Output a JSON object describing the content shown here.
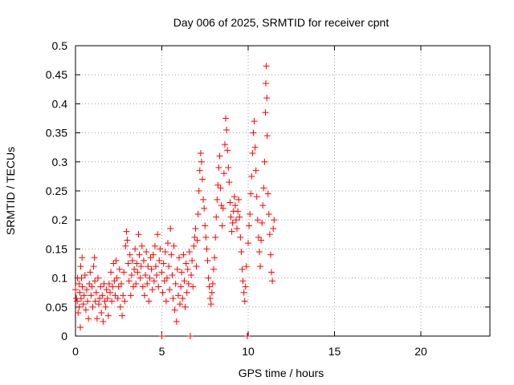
{
  "chart_data": {
    "type": "scatter",
    "title": "Day 006 of 2025, SRMTID for receiver cpnt",
    "xlabel": "GPS time / hours",
    "ylabel": "SRMTID / TECUs",
    "xlim": [
      0,
      24
    ],
    "ylim": [
      0,
      0.5
    ],
    "x_ticks": [
      0,
      5,
      10,
      15,
      20
    ],
    "x_tick_labels": [
      "0",
      "5",
      "10",
      "15",
      "20"
    ],
    "y_ticks": [
      0,
      0.05,
      0.1,
      0.15,
      0.2,
      0.25,
      0.3,
      0.35,
      0.4,
      0.45,
      0.5
    ],
    "y_tick_labels": [
      "0",
      "0.05",
      "0.1",
      "0.15",
      "0.2",
      "0.25",
      "0.3",
      "0.35",
      "0.4",
      "0.45",
      "0.5"
    ],
    "grid": true,
    "marker": "+",
    "color": "#ff0000",
    "series": [
      {
        "name": "SRMTID",
        "points": [
          [
            0.0,
            0.08
          ],
          [
            0.05,
            0.065
          ],
          [
            0.1,
            0.06
          ],
          [
            0.12,
            0.1
          ],
          [
            0.15,
            0.04
          ],
          [
            0.2,
            0.09
          ],
          [
            0.22,
            0.05
          ],
          [
            0.25,
            0.075
          ],
          [
            0.28,
            0.015
          ],
          [
            0.3,
            0.12
          ],
          [
            0.32,
            0.065
          ],
          [
            0.35,
            0.1
          ],
          [
            0.38,
            0.135
          ],
          [
            0.4,
            0.085
          ],
          [
            0.45,
            0.055
          ],
          [
            0.5,
            0.07
          ],
          [
            0.55,
            0.105
          ],
          [
            0.6,
            0.045
          ],
          [
            0.65,
            0.08
          ],
          [
            0.7,
            0.06
          ],
          [
            0.75,
            0.03
          ],
          [
            0.8,
            0.09
          ],
          [
            0.85,
            0.11
          ],
          [
            0.9,
            0.07
          ],
          [
            0.95,
            0.085
          ],
          [
            1.0,
            0.05
          ],
          [
            1.05,
            0.12
          ],
          [
            1.1,
            0.135
          ],
          [
            1.12,
            0.095
          ],
          [
            1.15,
            0.06
          ],
          [
            1.2,
            0.075
          ],
          [
            1.25,
            0.03
          ],
          [
            1.3,
            0.1
          ],
          [
            1.35,
            0.055
          ],
          [
            1.4,
            0.065
          ],
          [
            1.45,
            0.085
          ],
          [
            1.5,
            0.04
          ],
          [
            1.55,
            0.07
          ],
          [
            1.6,
            0.025
          ],
          [
            1.65,
            0.09
          ],
          [
            1.7,
            0.06
          ],
          [
            1.75,
            0.05
          ],
          [
            1.8,
            0.08
          ],
          [
            1.85,
            0.065
          ],
          [
            1.9,
            0.035
          ],
          [
            1.95,
            0.09
          ],
          [
            2.0,
            0.075
          ],
          [
            2.05,
            0.11
          ],
          [
            2.1,
            0.06
          ],
          [
            2.15,
            0.085
          ],
          [
            2.2,
            0.125
          ],
          [
            2.25,
            0.095
          ],
          [
            2.3,
            0.07
          ],
          [
            2.35,
            0.13
          ],
          [
            2.4,
            0.1
          ],
          [
            2.45,
            0.065
          ],
          [
            2.5,
            0.085
          ],
          [
            2.55,
            0.115
          ],
          [
            2.6,
            0.05
          ],
          [
            2.65,
            0.09
          ],
          [
            2.7,
            0.035
          ],
          [
            2.75,
            0.07
          ],
          [
            2.8,
            0.11
          ],
          [
            2.85,
            0.06
          ],
          [
            2.9,
            0.155
          ],
          [
            2.95,
            0.18
          ],
          [
            3.0,
            0.165
          ],
          [
            3.05,
            0.125
          ],
          [
            3.1,
            0.095
          ],
          [
            3.15,
            0.14
          ],
          [
            3.2,
            0.07
          ],
          [
            3.25,
            0.105
          ],
          [
            3.3,
            0.13
          ],
          [
            3.35,
            0.085
          ],
          [
            3.4,
            0.115
          ],
          [
            3.45,
            0.15
          ],
          [
            3.5,
            0.09
          ],
          [
            3.55,
            0.125
          ],
          [
            3.6,
            0.11
          ],
          [
            3.65,
            0.175
          ],
          [
            3.7,
            0.14
          ],
          [
            3.75,
            0.1
          ],
          [
            3.8,
            0.12
          ],
          [
            3.85,
            0.155
          ],
          [
            3.9,
            0.085
          ],
          [
            3.95,
            0.13
          ],
          [
            4.0,
            0.07
          ],
          [
            4.05,
            0.105
          ],
          [
            4.1,
            0.145
          ],
          [
            4.15,
            0.09
          ],
          [
            4.2,
            0.12
          ],
          [
            4.25,
            0.06
          ],
          [
            4.3,
            0.1
          ],
          [
            4.35,
            0.135
          ],
          [
            4.4,
            0.115
          ],
          [
            4.45,
            0.08
          ],
          [
            4.5,
            0.14
          ],
          [
            4.55,
            0.095
          ],
          [
            4.6,
            0.155
          ],
          [
            4.65,
            0.12
          ],
          [
            4.7,
            0.105
          ],
          [
            4.75,
            0.175
          ],
          [
            4.8,
            0.085
          ],
          [
            4.85,
            0.13
          ],
          [
            4.9,
            0.15
          ],
          [
            5.0,
            0.0
          ],
          [
            5.0,
            0.11
          ],
          [
            5.05,
            0.075
          ],
          [
            5.1,
            0.125
          ],
          [
            5.15,
            0.095
          ],
          [
            5.2,
            0.145
          ],
          [
            5.25,
            0.06
          ],
          [
            5.3,
            0.1
          ],
          [
            5.35,
            0.16
          ],
          [
            5.4,
            0.12
          ],
          [
            5.45,
            0.08
          ],
          [
            5.5,
            0.185
          ],
          [
            5.55,
            0.14
          ],
          [
            5.6,
            0.105
          ],
          [
            5.65,
            0.065
          ],
          [
            5.7,
            0.155
          ],
          [
            5.75,
            0.045
          ],
          [
            5.8,
            0.09
          ],
          [
            5.85,
            0.025
          ],
          [
            5.9,
            0.115
          ],
          [
            5.95,
            0.07
          ],
          [
            6.0,
            0.135
          ],
          [
            6.05,
            0.055
          ],
          [
            6.1,
            0.085
          ],
          [
            6.15,
            0.11
          ],
          [
            6.2,
            0.065
          ],
          [
            6.25,
            0.14
          ],
          [
            6.3,
            0.095
          ],
          [
            6.35,
            0.05
          ],
          [
            6.4,
            0.125
          ],
          [
            6.45,
            0.075
          ],
          [
            6.5,
            0.115
          ],
          [
            6.55,
            0.09
          ],
          [
            6.6,
            0.145
          ],
          [
            6.65,
            0.0
          ],
          [
            6.7,
            0.105
          ],
          [
            6.75,
            0.13
          ],
          [
            6.8,
            0.085
          ],
          [
            6.85,
            0.155
          ],
          [
            6.9,
            0.17
          ],
          [
            6.95,
            0.185
          ],
          [
            7.0,
            0.12
          ],
          [
            7.05,
            0.165
          ],
          [
            7.1,
            0.21
          ],
          [
            7.15,
            0.25
          ],
          [
            7.2,
            0.285
          ],
          [
            7.25,
            0.315
          ],
          [
            7.3,
            0.3
          ],
          [
            7.35,
            0.27
          ],
          [
            7.4,
            0.235
          ],
          [
            7.45,
            0.22
          ],
          [
            7.5,
            0.19
          ],
          [
            7.55,
            0.17
          ],
          [
            7.6,
            0.15
          ],
          [
            7.65,
            0.13
          ],
          [
            7.7,
            0.1
          ],
          [
            7.75,
            0.085
          ],
          [
            7.8,
            0.065
          ],
          [
            7.85,
            0.055
          ],
          [
            7.9,
            0.075
          ],
          [
            7.95,
            0.09
          ],
          [
            8.0,
            0.115
          ],
          [
            8.05,
            0.135
          ],
          [
            8.1,
            0.17
          ],
          [
            8.15,
            0.205
          ],
          [
            8.2,
            0.235
          ],
          [
            8.25,
            0.26
          ],
          [
            8.3,
            0.29
          ],
          [
            8.35,
            0.31
          ],
          [
            8.4,
            0.255
          ],
          [
            8.45,
            0.225
          ],
          [
            8.5,
            0.19
          ],
          [
            8.55,
            0.22
          ],
          [
            8.6,
            0.28
          ],
          [
            8.65,
            0.33
          ],
          [
            8.7,
            0.375
          ],
          [
            8.75,
            0.355
          ],
          [
            8.8,
            0.32
          ],
          [
            8.85,
            0.29
          ],
          [
            8.9,
            0.265
          ],
          [
            8.95,
            0.23
          ],
          [
            9.0,
            0.205
          ],
          [
            9.05,
            0.18
          ],
          [
            9.1,
            0.195
          ],
          [
            9.15,
            0.215
          ],
          [
            9.2,
            0.24
          ],
          [
            9.25,
            0.225
          ],
          [
            9.3,
            0.2
          ],
          [
            9.35,
            0.185
          ],
          [
            9.4,
            0.215
          ],
          [
            9.45,
            0.235
          ],
          [
            9.5,
            0.205
          ],
          [
            9.55,
            0.17
          ],
          [
            9.6,
            0.145
          ],
          [
            9.65,
            0.115
          ],
          [
            9.7,
            0.095
          ],
          [
            9.75,
            0.075
          ],
          [
            9.8,
            0.06
          ],
          [
            9.85,
            0.085
          ],
          [
            9.9,
            0.12
          ],
          [
            9.95,
            0.0
          ],
          [
            10.0,
            0.16
          ],
          [
            10.05,
            0.19
          ],
          [
            10.1,
            0.21
          ],
          [
            10.15,
            0.245
          ],
          [
            10.2,
            0.275
          ],
          [
            10.25,
            0.315
          ],
          [
            10.3,
            0.35
          ],
          [
            10.35,
            0.37
          ],
          [
            10.4,
            0.325
          ],
          [
            10.45,
            0.285
          ],
          [
            10.5,
            0.24
          ],
          [
            10.55,
            0.2
          ],
          [
            10.6,
            0.17
          ],
          [
            10.65,
            0.145
          ],
          [
            10.7,
            0.12
          ],
          [
            10.75,
            0.165
          ],
          [
            10.8,
            0.195
          ],
          [
            10.85,
            0.225
          ],
          [
            10.9,
            0.255
          ],
          [
            10.95,
            0.3
          ],
          [
            11.0,
            0.385
          ],
          [
            11.02,
            0.435
          ],
          [
            11.05,
            0.465
          ],
          [
            11.08,
            0.41
          ],
          [
            11.1,
            0.345
          ],
          [
            11.15,
            0.245
          ],
          [
            11.2,
            0.21
          ],
          [
            11.25,
            0.175
          ],
          [
            11.3,
            0.14
          ],
          [
            11.35,
            0.11
          ],
          [
            11.4,
            0.095
          ],
          [
            11.45,
            0.185
          ],
          [
            11.5,
            0.2
          ]
        ]
      }
    ]
  }
}
